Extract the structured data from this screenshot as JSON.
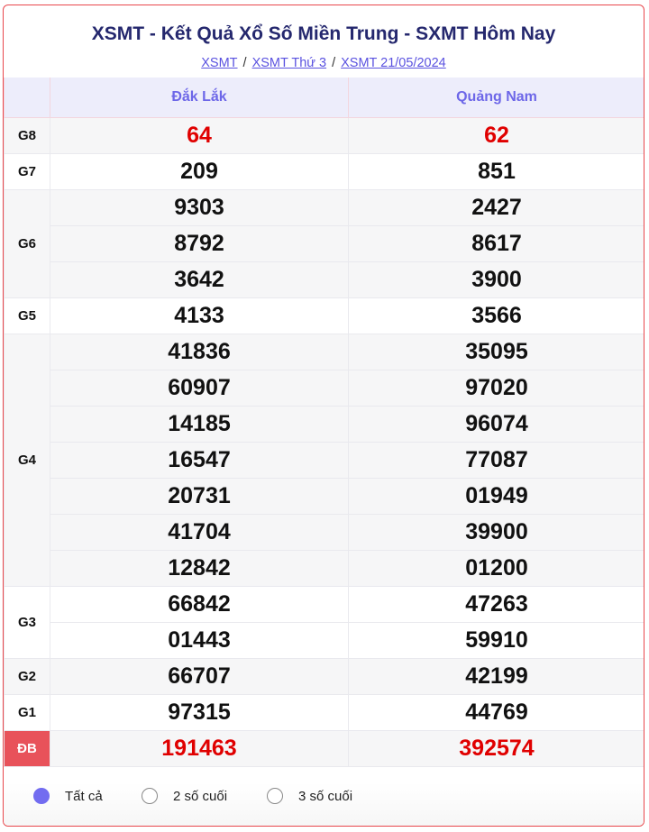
{
  "header": {
    "title": "XSMT - Kết Quả Xổ Số Miền Trung - SXMT Hôm Nay",
    "breadcrumb": [
      "XSMT",
      "XSMT Thứ 3",
      "XSMT 21/05/2024"
    ]
  },
  "table": {
    "provinces": [
      "Đắk Lắk",
      "Quảng Nam"
    ],
    "prizes": [
      {
        "label": "G8",
        "highlight": true,
        "values": [
          [
            "64"
          ],
          [
            "62"
          ]
        ]
      },
      {
        "label": "G7",
        "values": [
          [
            "209"
          ],
          [
            "851"
          ]
        ]
      },
      {
        "label": "G6",
        "values": [
          [
            "9303",
            "8792",
            "3642"
          ],
          [
            "2427",
            "8617",
            "3900"
          ]
        ]
      },
      {
        "label": "G5",
        "values": [
          [
            "4133"
          ],
          [
            "3566"
          ]
        ]
      },
      {
        "label": "G4",
        "values": [
          [
            "41836",
            "60907",
            "14185",
            "16547",
            "20731",
            "41704",
            "12842"
          ],
          [
            "35095",
            "97020",
            "96074",
            "77087",
            "01949",
            "39900",
            "01200"
          ]
        ]
      },
      {
        "label": "G3",
        "values": [
          [
            "66842",
            "01443"
          ],
          [
            "47263",
            "59910"
          ]
        ]
      },
      {
        "label": "G2",
        "values": [
          [
            "66707"
          ],
          [
            "42199"
          ]
        ]
      },
      {
        "label": "G1",
        "values": [
          [
            "97315"
          ],
          [
            "44769"
          ]
        ]
      },
      {
        "label": "ĐB",
        "highlight": true,
        "special": true,
        "values": [
          [
            "191463"
          ],
          [
            "392574"
          ]
        ]
      }
    ]
  },
  "filters": {
    "options": [
      "Tất cả",
      "2 số cuối",
      "3 số cuối"
    ],
    "selected": "Tất cả"
  },
  "colors": {
    "accent": "#726cf0",
    "red": "#e00000",
    "border": "#e8474c",
    "title": "#25286e"
  }
}
